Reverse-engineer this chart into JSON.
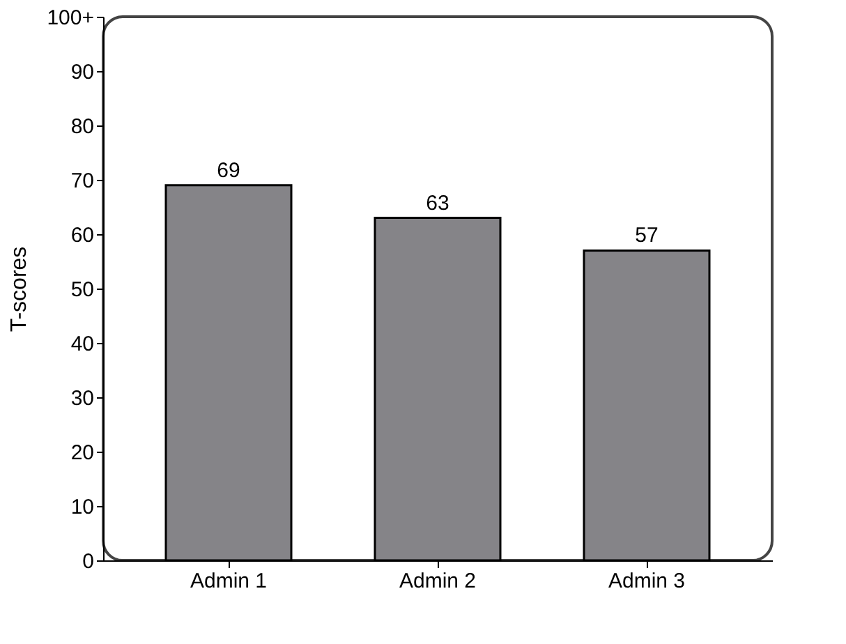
{
  "chart_data": {
    "type": "bar",
    "ylabel": "T-scores",
    "categories": [
      "Admin 1",
      "Admin 2",
      "Admin 3"
    ],
    "values": [
      69,
      63,
      57
    ],
    "color": "#858488",
    "ylim": [
      0,
      100
    ],
    "yticks": [
      0,
      10,
      20,
      30,
      40,
      50,
      60,
      70,
      80,
      90,
      {
        "value": 100,
        "label": "100+"
      }
    ],
    "data_labels": true,
    "grid": false
  }
}
